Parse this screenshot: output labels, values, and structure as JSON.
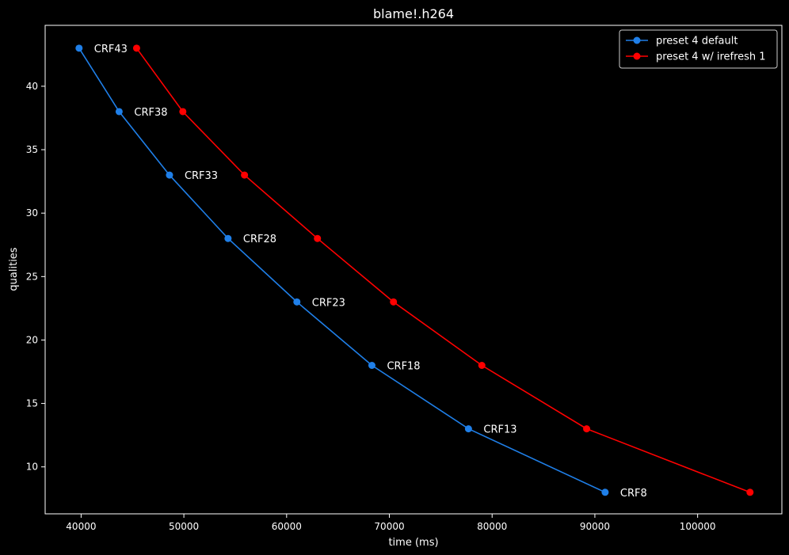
{
  "chart_data": {
    "type": "line",
    "title": "blame!.h264",
    "xlabel": "time (ms)",
    "ylabel": "qualities",
    "xlim": [
      36500,
      108200
    ],
    "ylim": [
      6.3,
      44.8
    ],
    "x_ticks": [
      40000,
      50000,
      60000,
      70000,
      80000,
      90000,
      100000
    ],
    "y_ticks": [
      10,
      15,
      20,
      25,
      30,
      35,
      40
    ],
    "grid": false,
    "legend_position": "top-right",
    "series": [
      {
        "name": "preset 4 default",
        "color": "#1f7fe8",
        "points": [
          {
            "x": 39800,
            "y": 43
          },
          {
            "x": 43700,
            "y": 38
          },
          {
            "x": 48600,
            "y": 33
          },
          {
            "x": 54300,
            "y": 28
          },
          {
            "x": 61000,
            "y": 23
          },
          {
            "x": 68300,
            "y": 18
          },
          {
            "x": 77700,
            "y": 13
          },
          {
            "x": 91000,
            "y": 8
          }
        ]
      },
      {
        "name": "preset 4 w/ irefresh 1",
        "color": "#ff0000",
        "points": [
          {
            "x": 45400,
            "y": 43
          },
          {
            "x": 49900,
            "y": 38
          },
          {
            "x": 55900,
            "y": 33
          },
          {
            "x": 63000,
            "y": 28
          },
          {
            "x": 70400,
            "y": 23
          },
          {
            "x": 79000,
            "y": 18
          },
          {
            "x": 89200,
            "y": 13
          },
          {
            "x": 105100,
            "y": 8
          }
        ]
      }
    ],
    "annotations": [
      {
        "text": "CRF43",
        "x": 39800,
        "y": 43
      },
      {
        "text": "CRF38",
        "x": 43700,
        "y": 38
      },
      {
        "text": "CRF33",
        "x": 48600,
        "y": 33
      },
      {
        "text": "CRF28",
        "x": 54300,
        "y": 28
      },
      {
        "text": "CRF23",
        "x": 61000,
        "y": 23
      },
      {
        "text": "CRF18",
        "x": 68300,
        "y": 18
      },
      {
        "text": "CRF13",
        "x": 77700,
        "y": 13
      },
      {
        "text": "CRF8",
        "x": 91000,
        "y": 8
      }
    ]
  }
}
